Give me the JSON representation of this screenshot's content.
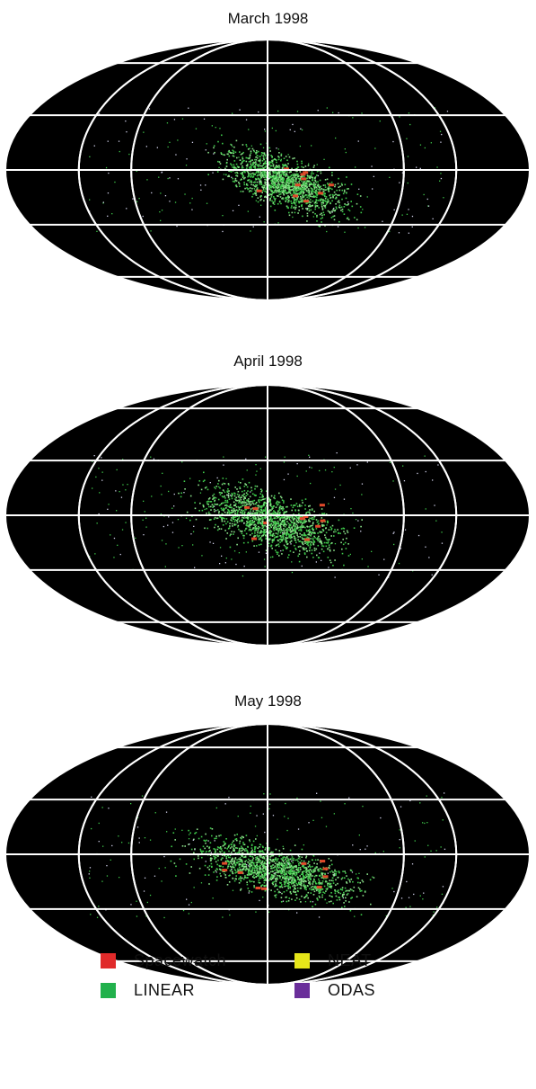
{
  "panels": [
    {
      "title": "March 1998"
    },
    {
      "title": "April 1998"
    },
    {
      "title": "May 1998"
    }
  ],
  "legend": [
    {
      "label": "Spacewatch",
      "color": "#e02a2a"
    },
    {
      "label": "LINEAR",
      "color": "#22b14c"
    },
    {
      "label": "NEAT",
      "color": "#e6e619"
    },
    {
      "label": "ODAS",
      "color": "#6a2e9a"
    }
  ],
  "colors": {
    "sky": "#000000",
    "grid": "#ffffff",
    "detections_linear": "#3ec94a",
    "detections_spacewatch": "#e04a2a"
  }
}
